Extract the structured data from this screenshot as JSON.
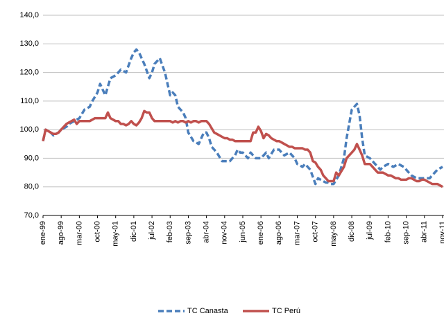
{
  "chart_data": {
    "type": "line",
    "categories": [
      "ene-99",
      null,
      null,
      null,
      null,
      null,
      null,
      "ago-99",
      null,
      null,
      null,
      null,
      null,
      null,
      "mar-00",
      null,
      null,
      null,
      null,
      null,
      null,
      "oct-00",
      null,
      null,
      null,
      null,
      null,
      null,
      "may-01",
      null,
      null,
      null,
      null,
      null,
      null,
      "dic-01",
      null,
      null,
      null,
      null,
      null,
      null,
      "jul-02",
      null,
      null,
      null,
      null,
      null,
      null,
      "feb-03",
      null,
      null,
      null,
      null,
      null,
      null,
      "sep-03",
      null,
      null,
      null,
      null,
      null,
      null,
      "abr-04",
      null,
      null,
      null,
      null,
      null,
      null,
      "nov-04",
      null,
      null,
      null,
      null,
      null,
      null,
      "jun-05",
      null,
      null,
      null,
      null,
      null,
      null,
      "ene-06",
      null,
      null,
      null,
      null,
      null,
      null,
      "ago-06",
      null,
      null,
      null,
      null,
      null,
      null,
      "mar-07",
      null,
      null,
      null,
      null,
      null,
      null,
      "oct-07",
      null,
      null,
      null,
      null,
      null,
      null,
      "may-08",
      null,
      null,
      null,
      null,
      null,
      null,
      "dic-08",
      null,
      null,
      null,
      null,
      null,
      null,
      "jul-09",
      null,
      null,
      null,
      null,
      null,
      null,
      "feb-10",
      null,
      null,
      null,
      null,
      null,
      null,
      "sep-10",
      null,
      null,
      null,
      null,
      null,
      null,
      "abr-11",
      null,
      null,
      null,
      null,
      null,
      null,
      "nov-11"
    ],
    "series": [
      {
        "name": "TC Canasta",
        "color": "#4a7ebb",
        "dashed": true,
        "values": [
          96,
          100,
          99.5,
          99,
          98,
          98.5,
          99,
          100,
          100.5,
          101,
          102,
          102.5,
          103,
          103.5,
          104,
          105.5,
          107,
          107.5,
          108,
          110,
          111.5,
          113,
          116,
          114,
          112,
          115,
          118,
          118.5,
          119,
          120,
          121,
          120.5,
          120,
          122.5,
          125,
          127,
          128,
          127,
          125,
          123,
          120.5,
          118,
          120,
          123,
          124,
          125,
          122.5,
          120,
          116,
          112,
          113,
          112,
          108,
          107,
          106,
          104,
          99,
          97.5,
          96,
          95.5,
          95,
          97,
          99,
          99,
          97,
          94,
          93,
          92,
          90.5,
          89,
          89,
          89,
          89,
          90,
          91,
          93,
          92,
          92,
          91,
          90,
          92,
          91,
          90,
          90,
          90,
          91,
          92,
          90,
          91.5,
          93,
          93,
          93,
          92,
          91,
          91.5,
          92,
          91,
          90,
          88,
          87.5,
          87,
          88,
          87,
          86,
          83.5,
          81,
          83,
          82.5,
          82,
          81.5,
          81.5,
          81,
          81,
          82.5,
          84,
          87,
          90,
          97,
          102,
          107,
          108,
          109,
          105,
          97,
          91,
          90.5,
          90,
          89,
          88,
          87,
          86,
          87,
          87.5,
          88,
          87.5,
          87,
          87.5,
          88,
          87.5,
          87,
          86,
          85,
          84,
          83.5,
          83,
          83,
          83,
          83,
          83,
          83,
          84,
          85,
          86,
          86.5,
          87
        ]
      },
      {
        "name": "TC Perú",
        "color": "#c0504d",
        "dashed": false,
        "values": [
          96,
          100,
          99.5,
          99,
          98.5,
          98.5,
          99,
          100,
          101,
          102,
          102.5,
          103,
          103.5,
          102,
          103,
          103,
          103,
          103,
          103,
          103.5,
          104,
          104,
          104,
          104,
          104,
          106,
          104,
          103.5,
          103,
          103,
          102,
          102,
          101.5,
          102,
          103,
          102,
          101.5,
          102.5,
          104,
          106.5,
          106,
          106,
          104,
          103,
          103,
          103,
          103,
          103,
          103,
          103,
          102.5,
          103,
          102.5,
          103,
          103,
          102.5,
          103,
          102.5,
          103,
          103,
          102.5,
          103,
          103,
          103,
          102,
          100.5,
          99,
          98.5,
          98,
          97.5,
          97,
          97,
          96.5,
          96.5,
          96,
          96,
          96,
          96,
          96,
          96,
          96,
          99,
          99,
          101,
          99.5,
          97,
          98.5,
          98,
          97,
          96.5,
          96,
          96,
          95.5,
          95,
          94.5,
          94,
          94,
          93.5,
          93.5,
          93.5,
          93.5,
          93,
          93,
          92,
          89,
          88.5,
          87,
          86,
          84,
          83,
          82,
          82,
          82,
          85,
          84,
          85.5,
          87,
          90,
          91,
          92,
          93,
          95,
          93,
          91,
          88,
          88,
          88,
          87,
          86,
          85,
          85,
          85,
          84.5,
          84,
          84,
          83.5,
          83,
          83,
          82.5,
          82.5,
          82.5,
          83,
          83,
          82.5,
          82,
          82,
          82.5,
          82.5,
          82,
          81.5,
          81,
          81,
          81,
          80.5,
          80
        ]
      }
    ],
    "ylim": [
      70,
      140
    ],
    "yticks": [
      {
        "value": 70,
        "label": "70,0"
      },
      {
        "value": 80,
        "label": "80,0"
      },
      {
        "value": 90,
        "label": "90,0"
      },
      {
        "value": 100,
        "label": "100,0"
      },
      {
        "value": 110,
        "label": "110,0"
      },
      {
        "value": 120,
        "label": "120,0"
      },
      {
        "value": 130,
        "label": "130,0"
      },
      {
        "value": 140,
        "label": "140,0"
      }
    ],
    "grid": true,
    "legend": "bottom"
  }
}
